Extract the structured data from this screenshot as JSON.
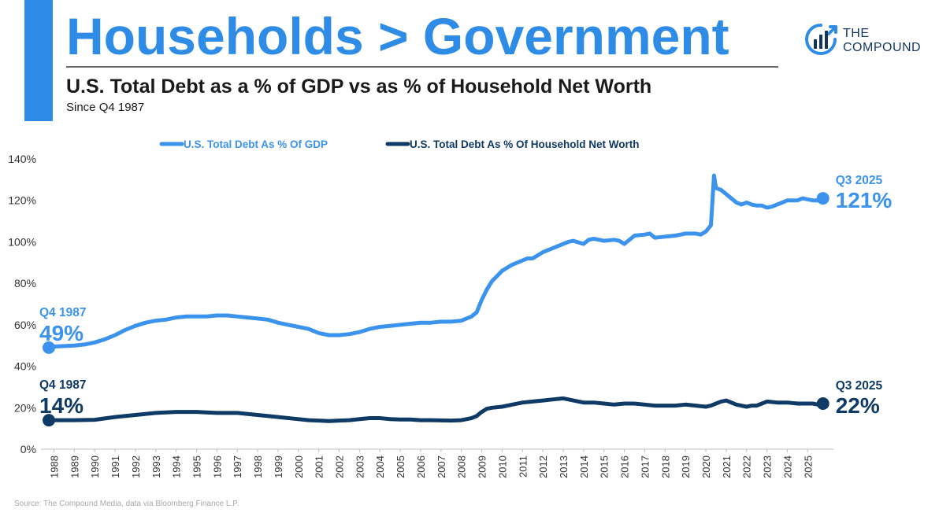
{
  "header": {
    "title": "Households > Government",
    "subtitle": "U.S. Total Debt as a % of GDP vs as % of Household Net Worth",
    "since": "Since Q4 1987"
  },
  "logo": {
    "line1": "THE",
    "line2": "COMPOUND",
    "icon": "bar-chart-cycle-icon"
  },
  "source": "Source: The Compound Media, data via Bloomberg Finance L.P.",
  "colors": {
    "gdp": "#3b93ee",
    "networth": "#0f3a66",
    "title": "#2e8be6",
    "axis": "#333333",
    "grid": "#d9d9d9"
  },
  "chart_data": {
    "type": "line",
    "title": "U.S. Total Debt as a % of GDP vs as % of Household Net Worth",
    "xlabel": "",
    "ylabel": "",
    "ylim": [
      0,
      140
    ],
    "y_ticks": [
      0,
      20,
      40,
      60,
      80,
      100,
      120,
      140
    ],
    "y_tick_labels": [
      "0%",
      "20%",
      "40%",
      "60%",
      "80%",
      "100%",
      "120%",
      "140%"
    ],
    "x_tick_labels": [
      "1988",
      "1989",
      "1990",
      "1991",
      "1992",
      "1993",
      "1994",
      "1995",
      "1996",
      "1997",
      "1998",
      "1999",
      "2000",
      "2001",
      "2002",
      "2003",
      "2004",
      "2005",
      "2006",
      "2007",
      "2008",
      "2009",
      "2010",
      "2011",
      "2012",
      "2013",
      "2014",
      "2015",
      "2016",
      "2017",
      "2018",
      "2019",
      "2020",
      "2021",
      "2022",
      "2023",
      "2024",
      "2025"
    ],
    "grid": false,
    "legend_position": "top",
    "series": [
      {
        "name": "U.S. Total Debt As % Of GDP",
        "color": "#3b93ee",
        "x": [
          1987.75,
          1988,
          1989,
          1989.5,
          1990,
          1990.5,
          1991,
          1991.5,
          1992,
          1992.5,
          1993,
          1993.5,
          1994,
          1994.5,
          1995,
          1995.5,
          1996,
          1996.5,
          1997,
          1997.5,
          1998,
          1998.5,
          1999,
          1999.5,
          2000,
          2000.5,
          2001,
          2001.5,
          2002,
          2002.5,
          2003,
          2003.5,
          2004,
          2004.5,
          2005,
          2005.5,
          2006,
          2006.5,
          2007,
          2007.5,
          2008,
          2008.25,
          2008.5,
          2008.75,
          2009,
          2009.25,
          2009.5,
          2010,
          2010.5,
          2011,
          2011.25,
          2011.5,
          2012,
          2012.5,
          2013,
          2013.25,
          2013.5,
          2014,
          2014.25,
          2014.5,
          2015,
          2015.5,
          2015.75,
          2016,
          2016.5,
          2017,
          2017.25,
          2017.5,
          2018,
          2018.5,
          2019,
          2019.5,
          2019.75,
          2020,
          2020.25,
          2020.4,
          2020.5,
          2020.75,
          2021,
          2021.25,
          2021.5,
          2021.75,
          2022,
          2022.25,
          2022.5,
          2022.75,
          2023,
          2023.25,
          2023.5,
          2023.75,
          2024,
          2024.25,
          2024.5,
          2024.75,
          2025,
          2025.25,
          2025.5,
          2025.75
        ],
        "values": [
          49,
          49.5,
          50,
          50.5,
          51.5,
          53,
          55,
          57.5,
          59.5,
          61,
          62,
          62.5,
          63.5,
          64,
          64,
          64,
          64.5,
          64.5,
          64,
          63.5,
          63,
          62.5,
          61,
          60,
          59,
          58,
          56,
          55,
          55,
          55.5,
          56.5,
          58,
          59,
          59.5,
          60,
          60.5,
          61,
          61,
          61.5,
          61.5,
          62,
          63,
          64,
          66,
          72,
          77,
          81,
          86,
          89,
          91,
          92,
          92,
          95,
          97,
          99,
          100,
          100.5,
          99,
          101,
          101.5,
          100.5,
          101,
          100.5,
          99,
          103,
          103.5,
          104,
          102,
          102.5,
          103,
          104,
          104,
          103.5,
          105,
          108,
          132,
          126,
          125,
          123,
          121,
          119,
          118,
          119,
          118,
          117.5,
          117.5,
          116.5,
          117,
          118,
          119,
          120,
          120,
          120,
          121,
          120.5,
          120,
          120,
          121
        ],
        "start_label": {
          "period": "Q4 1987",
          "value": "49%"
        },
        "end_label": {
          "period": "Q3 2025",
          "value": "121%"
        }
      },
      {
        "name": "U.S. Total Debt As % Of Household Net Worth",
        "color": "#0f3a66",
        "x": [
          1987.75,
          1988,
          1989,
          1990,
          1991,
          1992,
          1993,
          1994,
          1995,
          1996,
          1997,
          1998,
          1999,
          2000,
          2000.5,
          2001,
          2001.5,
          2002,
          2002.5,
          2003,
          2003.5,
          2004,
          2004.5,
          2005,
          2005.5,
          2006,
          2006.5,
          2007,
          2007.5,
          2008,
          2008.25,
          2008.5,
          2008.75,
          2009,
          2009.25,
          2009.5,
          2010,
          2010.5,
          2011,
          2011.5,
          2012,
          2012.5,
          2013,
          2013.5,
          2014,
          2014.5,
          2015,
          2015.5,
          2016,
          2016.5,
          2017,
          2017.5,
          2018,
          2018.5,
          2019,
          2019.5,
          2020,
          2020.25,
          2020.5,
          2020.75,
          2021,
          2021.25,
          2021.5,
          2022,
          2022.25,
          2022.5,
          2022.75,
          2023,
          2023.5,
          2024,
          2024.5,
          2025,
          2025.25,
          2025.5,
          2025.75
        ],
        "values": [
          14,
          14,
          14,
          14.2,
          15.5,
          16.5,
          17.5,
          18,
          18,
          17.5,
          17.5,
          16.5,
          15.5,
          14.5,
          14,
          13.8,
          13.6,
          13.8,
          14,
          14.5,
          15,
          15,
          14.5,
          14.3,
          14.3,
          14,
          14,
          13.9,
          13.8,
          14,
          14.5,
          15,
          16,
          18,
          19.5,
          20,
          20.5,
          21.5,
          22.5,
          23,
          23.5,
          24,
          24.5,
          23.5,
          22.5,
          22.5,
          22,
          21.5,
          22,
          22,
          21.5,
          21,
          21,
          21,
          21.5,
          21,
          20.5,
          21,
          22,
          23,
          23.5,
          22.5,
          21.5,
          20.5,
          21,
          21,
          22,
          23,
          22.5,
          22.5,
          22,
          22,
          22,
          21.5,
          22
        ],
        "start_label": {
          "period": "Q4 1987",
          "value": "14%"
        },
        "end_label": {
          "period": "Q3 2025",
          "value": "22%"
        }
      }
    ]
  }
}
